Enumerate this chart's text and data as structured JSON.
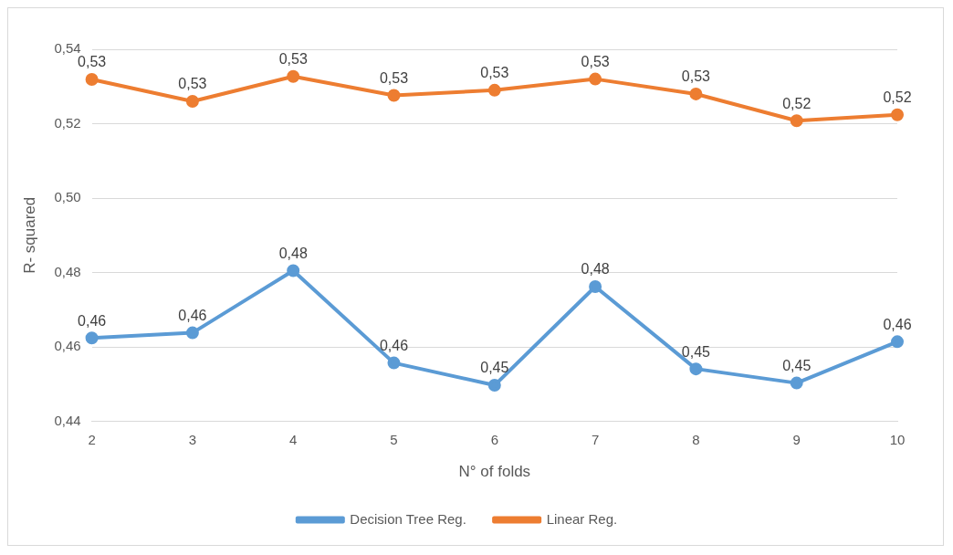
{
  "chart_data": {
    "type": "line",
    "xlabel": "N° of folds",
    "ylabel": "R- squared",
    "categories": [
      "2",
      "3",
      "4",
      "5",
      "6",
      "7",
      "8",
      "9",
      "10"
    ],
    "series": [
      {
        "name": "Decision Tree Reg.",
        "color": "#5b9bd5",
        "values": [
          0.4624,
          0.4638,
          0.4805,
          0.4557,
          0.4497,
          0.4762,
          0.4541,
          0.4503,
          0.4614
        ],
        "value_labels": [
          "0,46",
          "0,46",
          "0,48",
          "0,46",
          "0,45",
          "0,48",
          "0,45",
          "0,45",
          "0,46"
        ]
      },
      {
        "name": "Linear Reg.",
        "color": "#ed7d31",
        "values": [
          0.5319,
          0.526,
          0.5327,
          0.5276,
          0.529,
          0.532,
          0.528,
          0.5208,
          0.5224
        ],
        "value_labels": [
          "0,53",
          "0,53",
          "0,53",
          "0,53",
          "0,53",
          "0,53",
          "0,53",
          "0,52",
          "0,52"
        ]
      }
    ],
    "ylim": [
      0.44,
      0.54
    ],
    "yticks": [
      {
        "value": 0.44,
        "label": "0,44"
      },
      {
        "value": 0.46,
        "label": "0,46"
      },
      {
        "value": 0.48,
        "label": "0,48"
      },
      {
        "value": 0.5,
        "label": "0,50"
      },
      {
        "value": 0.52,
        "label": "0,52"
      },
      {
        "value": 0.54,
        "label": "0,54"
      }
    ],
    "grid": "y",
    "legend": "bottom",
    "marker": "circle",
    "line_style": "solid"
  }
}
